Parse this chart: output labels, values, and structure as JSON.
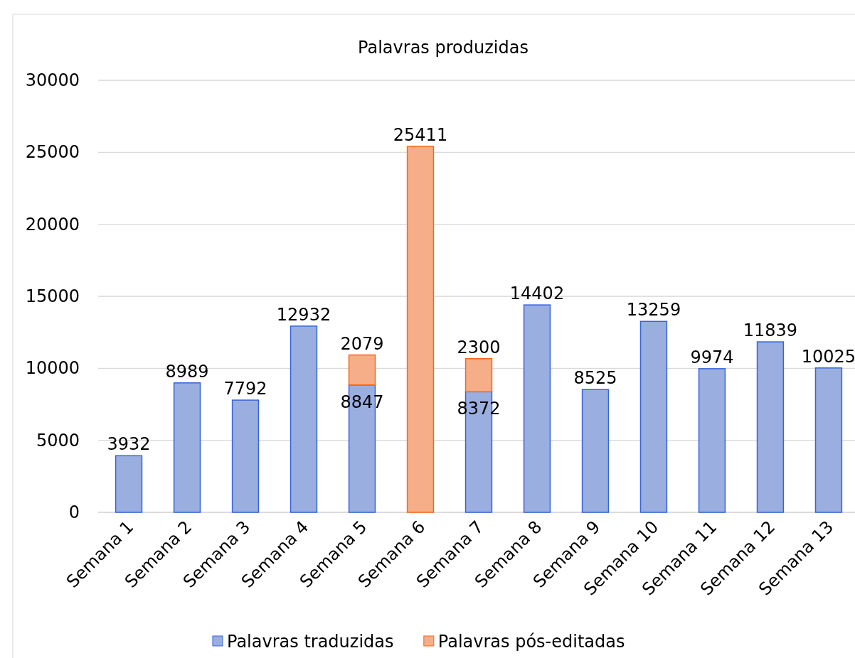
{
  "chart_data": {
    "type": "bar",
    "title": "Palavras produzidas",
    "stacked": true,
    "data_labels": true,
    "grid": "y",
    "legend": "bottom",
    "categories": [
      "Semana 1",
      "Semana 2",
      "Semana 3",
      "Semana 4",
      "Semana 5",
      "Semana 6",
      "Semana 7",
      "Semana 8",
      "Semana 9",
      "Semana 10",
      "Semana 11",
      "Semana 12",
      "Semana 13"
    ],
    "series": [
      {
        "name": "Palavras traduzidas",
        "color": "#9aaee0",
        "values": [
          3932,
          8989,
          7792,
          12932,
          8847,
          null,
          8372,
          14402,
          8525,
          13259,
          9974,
          11839,
          10025
        ]
      },
      {
        "name": "Palavras pós-editadas",
        "color": "#f6ae88",
        "values": [
          null,
          null,
          null,
          null,
          2079,
          25411,
          2300,
          null,
          null,
          null,
          null,
          null,
          null
        ]
      }
    ],
    "ylim": [
      0,
      30000
    ],
    "yticks": [
      0,
      5000,
      10000,
      15000,
      20000,
      25000,
      30000
    ]
  }
}
